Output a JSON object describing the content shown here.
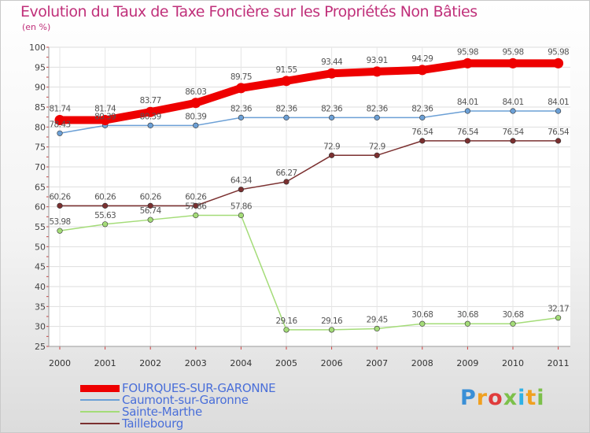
{
  "title": "Evolution du Taux de Taxe Foncière sur les Propriétés Non Bâties",
  "unit": "(en %)",
  "brand": {
    "letters": [
      "P",
      "r",
      "o",
      "x",
      "i",
      "t",
      "i"
    ],
    "colors": [
      "#3a8fd6",
      "#f0a020",
      "#e03c3c",
      "#7cc04a",
      "#2fb1e6",
      "#f0a020",
      "#7cc04a"
    ]
  },
  "chart_data": {
    "type": "line",
    "title": "Evolution du Taux de Taxe Foncière sur les Propriétés Non Bâties",
    "ylabel": "(en %)",
    "xlabel": "",
    "x": [
      "2000",
      "2001",
      "2002",
      "2003",
      "2004",
      "2005",
      "2006",
      "2007",
      "2008",
      "2009",
      "2010",
      "2011"
    ],
    "ylim": [
      25,
      100
    ],
    "yticks": [
      "25",
      "30",
      "35",
      "40",
      "45",
      "50",
      "55",
      "60",
      "65",
      "70",
      "75",
      "80",
      "85",
      "90",
      "95",
      "100"
    ],
    "legend_position": "bottom-left",
    "series": [
      {
        "name": "FOURQUES-SUR-GARONNE",
        "color": "#ee0000",
        "values": [
          81.74,
          81.74,
          83.77,
          86.03,
          89.75,
          91.55,
          93.44,
          93.91,
          94.29,
          95.98,
          95.98,
          95.98
        ],
        "labels": [
          "81.74",
          "81.74",
          "83.77",
          "86.03",
          "89.75",
          "91.55",
          "93.44",
          "93.91",
          "94.29",
          "95.98",
          "95.98",
          "95.98"
        ]
      },
      {
        "name": "Caumont-sur-Garonne",
        "color": "#6ca0d6",
        "values": [
          78.43,
          80.39,
          80.39,
          80.39,
          82.36,
          82.36,
          82.36,
          82.36,
          82.36,
          84.01,
          84.01,
          84.01
        ],
        "labels": [
          "78.43",
          "80.39",
          "80.39",
          "80.39",
          "82.36",
          "82.36",
          "82.36",
          "82.36",
          "82.36",
          "84.01",
          "84.01",
          "84.01"
        ]
      },
      {
        "name": "Sainte-Marthe",
        "color": "#a4dc78",
        "values": [
          53.98,
          55.63,
          56.74,
          57.86,
          57.86,
          29.16,
          29.16,
          29.45,
          30.68,
          30.68,
          30.68,
          32.17
        ],
        "labels": [
          "53.98",
          "55.63",
          "56.74",
          "57.86",
          "57.86",
          "29.16",
          "29.16",
          "29.45",
          "30.68",
          "30.68",
          "30.68",
          "32.17"
        ]
      },
      {
        "name": "Taillebourg",
        "color": "#7b3030",
        "values": [
          60.26,
          60.26,
          60.26,
          60.26,
          64.34,
          66.27,
          72.9,
          72.9,
          76.54,
          76.54,
          76.54,
          76.54
        ],
        "labels": [
          "60.26",
          "60.26",
          "60.26",
          "60.26",
          "64.34",
          "66.27",
          "72.9",
          "72.9",
          "76.54",
          "76.54",
          "76.54",
          "76.54"
        ]
      }
    ]
  }
}
